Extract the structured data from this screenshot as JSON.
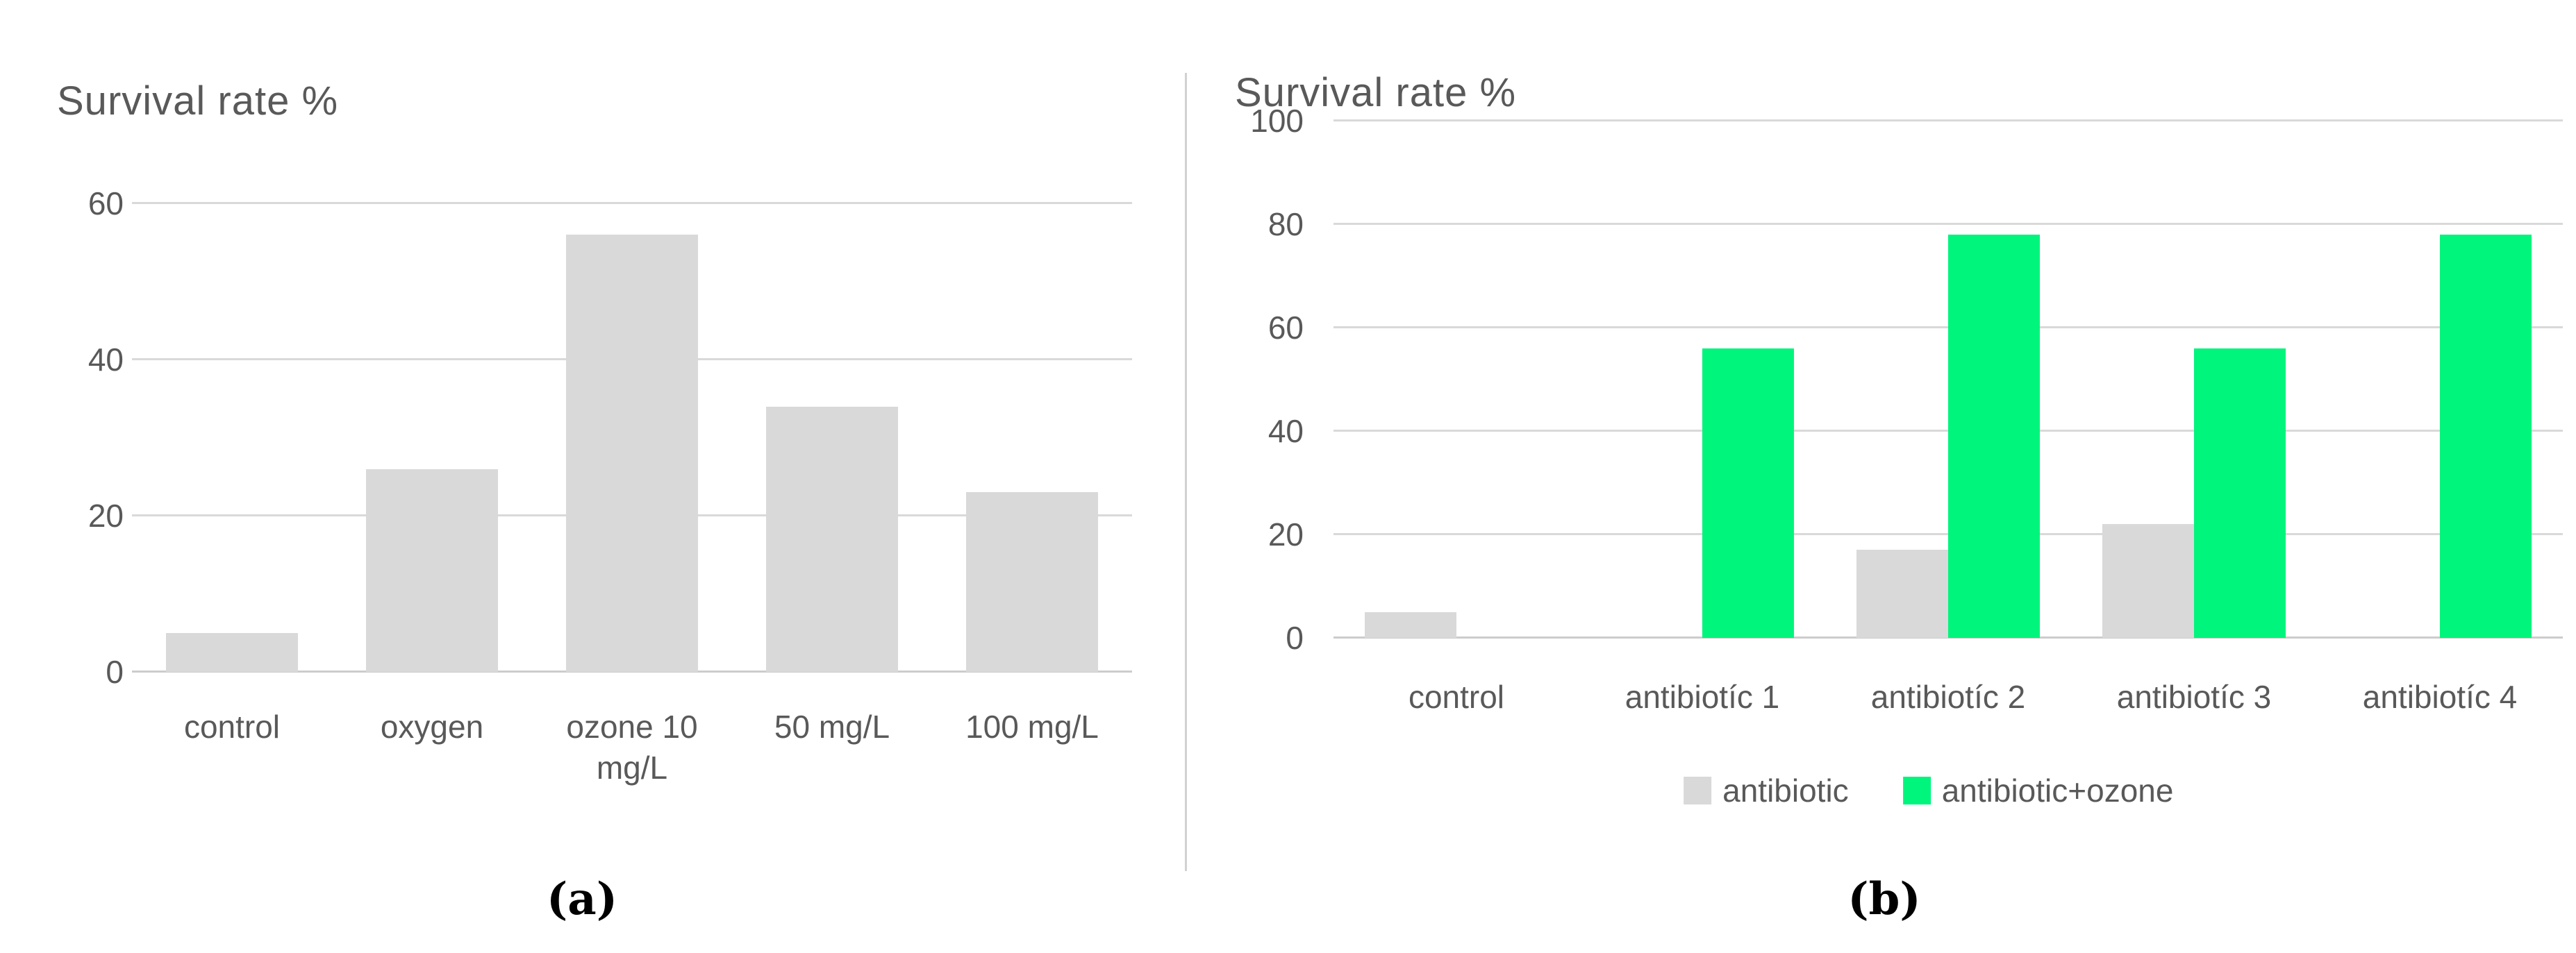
{
  "chart_data": [
    {
      "id": "a",
      "type": "bar",
      "title": "Survival rate %",
      "categories": [
        "control",
        "oxygen",
        "ozone 10 mg/L",
        "50 mg/L",
        "100 mg/L"
      ],
      "series": [
        {
          "name": "survival rate",
          "color": "#d9d9d9",
          "values": [
            5,
            26,
            56,
            34,
            23
          ]
        }
      ],
      "xlabel": "",
      "ylabel": "Survival rate %",
      "ylim": [
        0,
        60
      ],
      "yticks": [
        0,
        20,
        40,
        60
      ],
      "grid": true,
      "legend": false
    },
    {
      "id": "b",
      "type": "bar",
      "title": "Survival rate %",
      "categories": [
        "control",
        "antibiotíc 1",
        "antibiotíc 2",
        "antibiotíc 3",
        "antibiotíc 4"
      ],
      "series": [
        {
          "name": "antibiotic",
          "color": "#d9d9d9",
          "values": [
            5,
            0,
            17,
            22,
            0
          ]
        },
        {
          "name": "antibiotic+ozone",
          "color": "#00f57c",
          "values": [
            0,
            56,
            78,
            56,
            78
          ]
        }
      ],
      "xlabel": "",
      "ylabel": "Survival rate %",
      "ylim": [
        0,
        100
      ],
      "yticks": [
        0,
        20,
        40,
        60,
        80,
        100
      ],
      "grid": true,
      "legend": true,
      "legend_position": "bottom"
    }
  ],
  "captions": {
    "a": "(a)",
    "b": "(b)"
  },
  "colors": {
    "text": "#595959",
    "gridline": "#d9d9d9",
    "axis_line": "#cccccc",
    "gray_series": "#d9d9d9",
    "green_series": "#00f57c",
    "caption": "#000000",
    "background": "#ffffff"
  }
}
